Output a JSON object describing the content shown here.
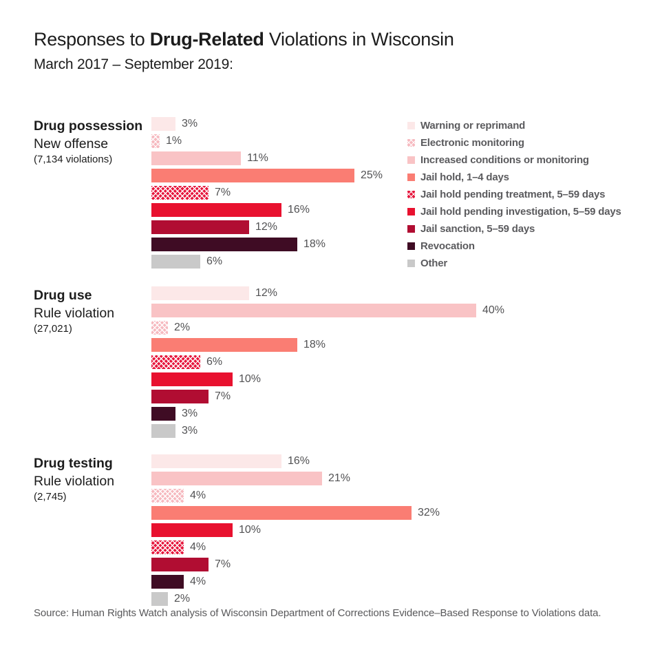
{
  "title": {
    "prefix": "Responses to ",
    "highlight": "Drug-Related",
    "suffix": " Violations in Wisconsin"
  },
  "subtitle": "March 2017 – September 2019:",
  "source": "Source: Human Rights Watch analysis of Wisconsin Department of Corrections Evidence–Based Response to Violations data.",
  "colors": {
    "warning": {
      "label": "Warning or reprimand",
      "fill": "#fce8e8",
      "pattern": false
    },
    "electronic": {
      "label": "Electronic monitoring",
      "fill": "#f6b9bf",
      "pattern": true
    },
    "increased": {
      "label": "Increased conditions or monitoring",
      "fill": "#f9c3c5",
      "pattern": false
    },
    "jail_hold_1_4": {
      "label": "Jail hold, 1–4 days",
      "fill": "#fa7d73",
      "pattern": false
    },
    "pending_treatment": {
      "label": "Jail hold pending treatment, 5–59 days",
      "fill": "#e6173d",
      "pattern": true
    },
    "pending_investigation": {
      "label": "Jail hold pending investigation, 5–59 days",
      "fill": "#e8112f",
      "pattern": false
    },
    "jail_sanction": {
      "label": "Jail sanction, 5–59 days",
      "fill": "#b10d32",
      "pattern": false
    },
    "revocation": {
      "label": "Revocation",
      "fill": "#3f0c24",
      "pattern": false
    },
    "other": {
      "label": "Other",
      "fill": "#c9c9c9",
      "pattern": false
    }
  },
  "legend_order": [
    "warning",
    "electronic",
    "increased",
    "jail_hold_1_4",
    "pending_treatment",
    "pending_investigation",
    "jail_sanction",
    "revocation",
    "other"
  ],
  "chart_data": {
    "type": "bar",
    "orientation": "horizontal",
    "unit": "percent",
    "value_range": [
      0,
      40
    ],
    "grid": false,
    "legend_position": "top-right",
    "categories": [
      "Warning or reprimand",
      "Electronic monitoring",
      "Increased conditions or monitoring",
      "Jail hold, 1–4 days",
      "Jail hold pending treatment, 5–59 days",
      "Jail hold pending investigation, 5–59 days",
      "Jail sanction, 5–59 days",
      "Revocation",
      "Other"
    ],
    "groups": [
      {
        "title": "Drug possession",
        "subtitle": "New offense",
        "count_note": "(7,134 violations)",
        "bars": [
          {
            "category": "warning",
            "value": 3
          },
          {
            "category": "electronic",
            "value": 1
          },
          {
            "category": "increased",
            "value": 11
          },
          {
            "category": "jail_hold_1_4",
            "value": 25
          },
          {
            "category": "pending_treatment",
            "value": 7
          },
          {
            "category": "pending_investigation",
            "value": 16
          },
          {
            "category": "jail_sanction",
            "value": 12
          },
          {
            "category": "revocation",
            "value": 18
          },
          {
            "category": "other",
            "value": 6
          }
        ]
      },
      {
        "title": "Drug use",
        "subtitle": "Rule violation",
        "count_note": "(27,021)",
        "bars": [
          {
            "category": "warning",
            "value": 12
          },
          {
            "category": "increased",
            "value": 40
          },
          {
            "category": "electronic",
            "value": 2
          },
          {
            "category": "jail_hold_1_4",
            "value": 18
          },
          {
            "category": "pending_treatment",
            "value": 6
          },
          {
            "category": "pending_investigation",
            "value": 10
          },
          {
            "category": "jail_sanction",
            "value": 7
          },
          {
            "category": "revocation",
            "value": 3
          },
          {
            "category": "other",
            "value": 3
          }
        ]
      },
      {
        "title": "Drug testing",
        "subtitle": "Rule violation",
        "count_note": "(2,745)",
        "bars": [
          {
            "category": "warning",
            "value": 16
          },
          {
            "category": "increased",
            "value": 21
          },
          {
            "category": "electronic",
            "value": 4
          },
          {
            "category": "jail_hold_1_4",
            "value": 32
          },
          {
            "category": "pending_investigation",
            "value": 10
          },
          {
            "category": "pending_treatment",
            "value": 4
          },
          {
            "category": "jail_sanction",
            "value": 7
          },
          {
            "category": "revocation",
            "value": 4
          },
          {
            "category": "other",
            "value": 2
          }
        ]
      }
    ]
  }
}
